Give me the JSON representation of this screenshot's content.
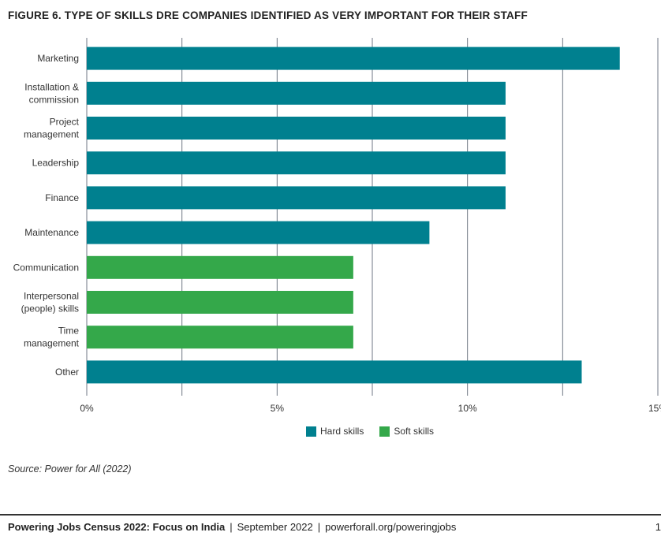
{
  "figure_title": "FIGURE 6. TYPE OF SKILLS DRE COMPANIES IDENTIFIED AS VERY IMPORTANT FOR THEIR STAFF",
  "chart_data": {
    "type": "bar",
    "orientation": "horizontal",
    "title": "FIGURE 6. TYPE OF SKILLS DRE COMPANIES IDENTIFIED AS VERY IMPORTANT FOR THEIR STAFF",
    "xlabel": "",
    "ylabel": "",
    "categories": [
      "Marketing",
      "Installation & commission",
      "Project management",
      "Leadership",
      "Finance",
      "Maintenance",
      "Communication",
      "Interpersonal (people) skills",
      "Time management",
      "Other"
    ],
    "category_lines": [
      [
        "Marketing"
      ],
      [
        "Installation &",
        "commission"
      ],
      [
        "Project",
        "management"
      ],
      [
        "Leadership"
      ],
      [
        "Finance"
      ],
      [
        "Maintenance"
      ],
      [
        "Communication"
      ],
      [
        "Interpersonal",
        "(people) skills"
      ],
      [
        "Time",
        "management"
      ],
      [
        "Other"
      ]
    ],
    "values": [
      14,
      11,
      11,
      11,
      11,
      9,
      7,
      7,
      7,
      13
    ],
    "groups": [
      "Hard skills",
      "Hard skills",
      "Hard skills",
      "Hard skills",
      "Hard skills",
      "Hard skills",
      "Soft skills",
      "Soft skills",
      "Soft skills",
      "Hard skills"
    ],
    "legend": [
      {
        "name": "Hard skills",
        "color": "#00808f"
      },
      {
        "name": "Soft skills",
        "color": "#34a84a"
      }
    ],
    "xlim": [
      0,
      15
    ],
    "ticks": [
      0,
      2.5,
      5,
      7.5,
      10,
      12.5,
      15
    ],
    "tick_labels": [
      "0%",
      "",
      "5%",
      "",
      "10%",
      "",
      "15%"
    ],
    "grid": true,
    "legend_position": "bottom-center"
  },
  "source": "Source: Power for All (2022)",
  "footer": {
    "publication": "Powering Jobs Census 2022: Focus on India",
    "separator": "|",
    "date": "September 2022",
    "url": "powerforall.org/poweringjobs",
    "page_number": "1"
  },
  "colors": {
    "hard": "#00808f",
    "soft": "#34a84a",
    "grid": "#6f7784"
  }
}
